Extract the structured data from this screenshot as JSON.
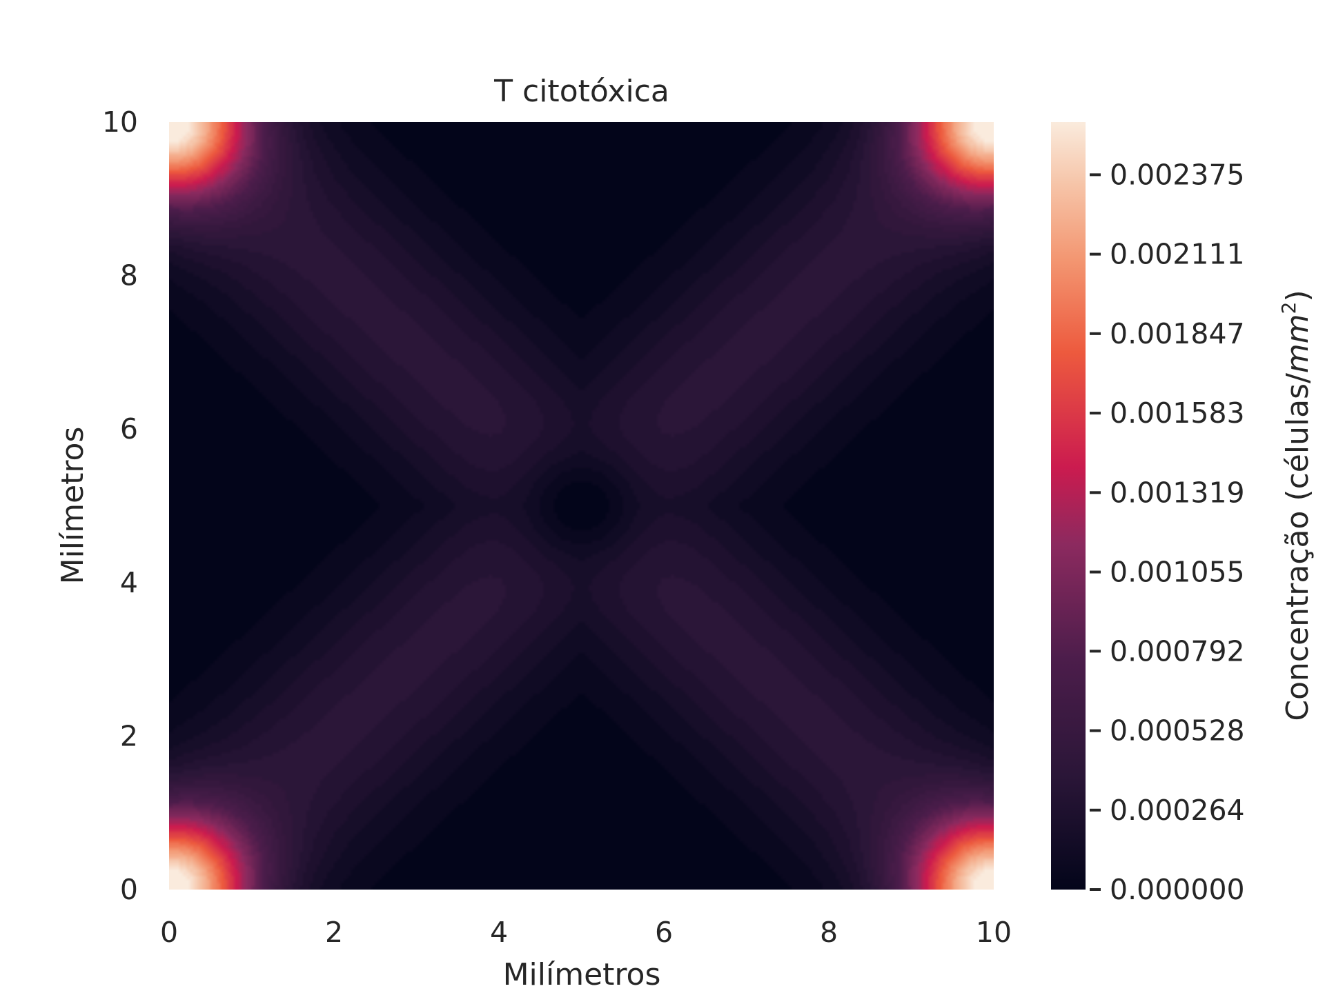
{
  "chart_data": {
    "type": "heatmap",
    "title": "T citotóxica",
    "xlabel": "Milímetros",
    "ylabel": "Milímetros",
    "xlim": [
      0,
      10
    ],
    "ylim": [
      0,
      10
    ],
    "x_ticks": [
      "0",
      "2",
      "4",
      "6",
      "8",
      "10"
    ],
    "y_ticks": [
      "0",
      "2",
      "4",
      "6",
      "8",
      "10"
    ],
    "colorbar": {
      "label_prefix": "Concentração (células/",
      "label_unit": "mm",
      "label_exp": "2",
      "label_suffix": ")",
      "ticks": [
        "0.000000",
        "0.000264",
        "0.000528",
        "0.000792",
        "0.001055",
        "0.001319",
        "0.001583",
        "0.001847",
        "0.002111",
        "0.002375"
      ],
      "tick_values": [
        0.0,
        0.000264,
        0.000528,
        0.000792,
        0.001055,
        0.001319,
        0.001583,
        0.001847,
        0.002111,
        0.002375
      ],
      "vmin": 0.0,
      "vmax": 0.00255,
      "colormap": "rocket"
    },
    "features": {
      "corner_peak_value": 0.00255,
      "corner_peaks": [
        [
          0,
          0
        ],
        [
          10,
          0
        ],
        [
          0,
          10
        ],
        [
          10,
          10
        ]
      ],
      "diagonal_lobe_value": 0.0004,
      "center": [
        5,
        5
      ]
    }
  }
}
